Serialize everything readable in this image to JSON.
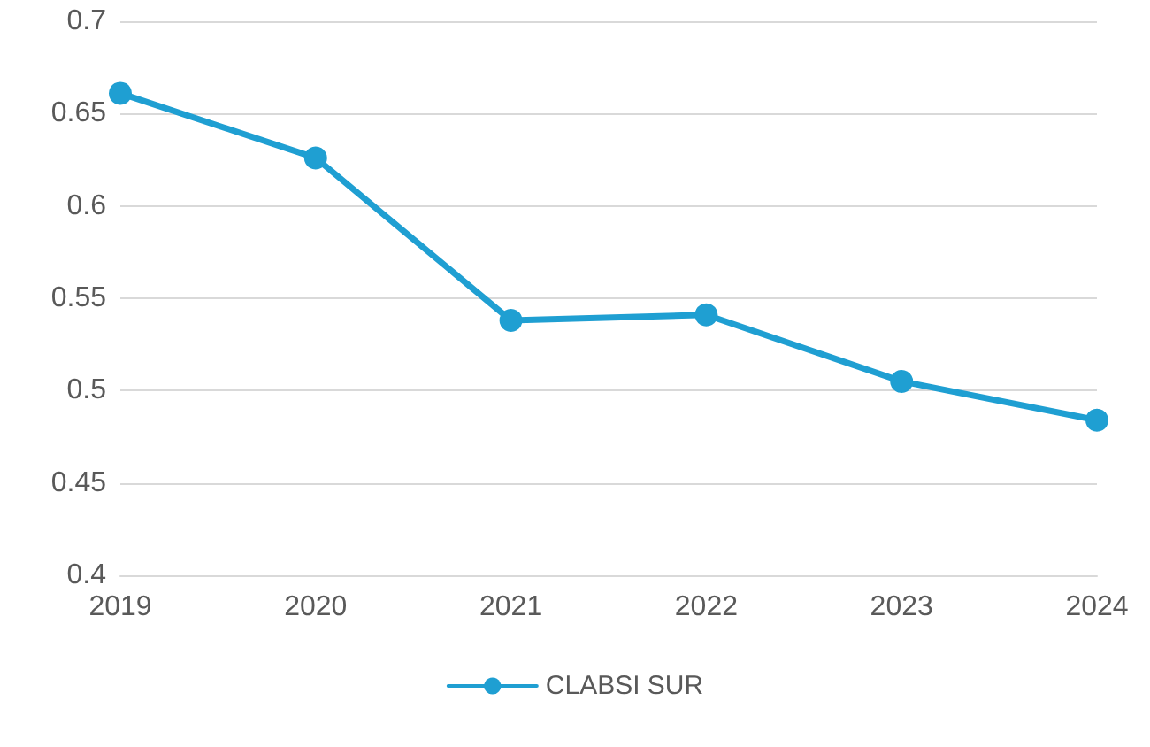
{
  "chart_data": {
    "type": "line",
    "categories": [
      "2019",
      "2020",
      "2021",
      "2022",
      "2023",
      "2024"
    ],
    "series": [
      {
        "name": "CLABSI SUR",
        "color": "#1f9fd2",
        "values": [
          0.661,
          0.626,
          0.538,
          0.541,
          0.505,
          0.484
        ]
      }
    ],
    "ylim": [
      0.4,
      0.7
    ],
    "yticks": [
      0.4,
      0.45,
      0.5,
      0.55,
      0.6,
      0.65,
      0.7
    ],
    "grid": "y",
    "legend": "bottom",
    "marker": "circle",
    "line_style": "solid"
  }
}
